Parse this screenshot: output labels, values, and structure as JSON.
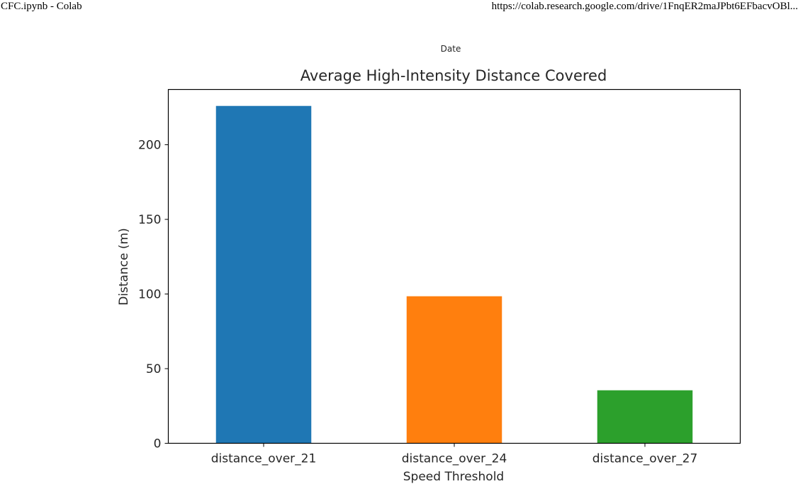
{
  "page_header": {
    "title": "CFC.ipynb - Colab",
    "url": "https://colab.research.google.com/drive/1FnqER2maJPbt6EFbacvOBl..."
  },
  "stray_label": "Date",
  "chart_data": {
    "type": "bar",
    "title": "Average High-Intensity Distance Covered",
    "xlabel": "Speed Threshold",
    "ylabel": "Distance (m)",
    "categories": [
      "distance_over_21",
      "distance_over_24",
      "distance_over_27"
    ],
    "values": [
      226,
      98.5,
      35.5
    ],
    "colors": [
      "#1f77b4",
      "#ff7f0e",
      "#2ca02c"
    ],
    "ylim": [
      0,
      237
    ],
    "yticks": [
      0,
      50,
      100,
      150,
      200
    ],
    "grid": false,
    "legend": "none"
  }
}
